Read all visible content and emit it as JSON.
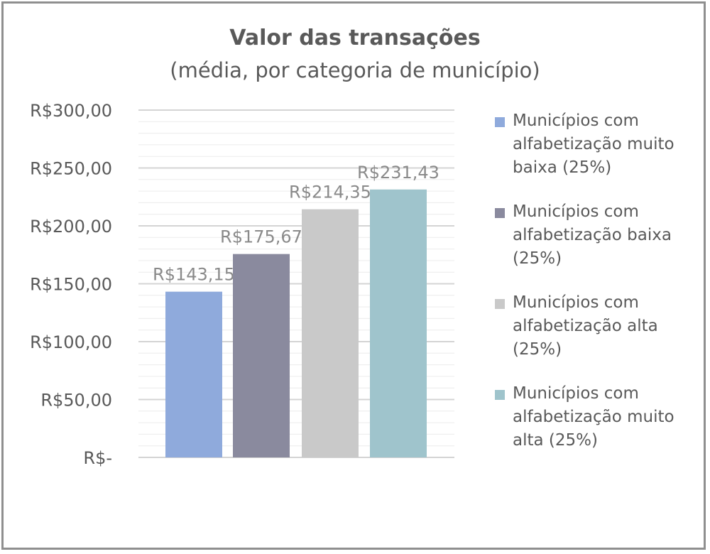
{
  "chart_data": {
    "type": "bar",
    "title": "Valor das transações",
    "subtitle": "(média, por categoria de município)",
    "categories": [
      "Municípios com alfabetização muito baixa (25%)",
      "Municípios com alfabetização baixa (25%)",
      "Municípios com alfabetização alta (25%)",
      "Municípios com alfabetização muito alta (25%)"
    ],
    "values": [
      143.15,
      175.67,
      214.35,
      231.43
    ],
    "data_labels": [
      "R$143,15",
      "R$175,67",
      "R$214,35",
      "R$231,43"
    ],
    "colors": [
      "#8faadc",
      "#8a8a9e",
      "#c9c9c9",
      "#9fc4cc"
    ],
    "ylim": [
      0,
      300
    ],
    "yticks": [
      0,
      50,
      100,
      150,
      200,
      250,
      300
    ],
    "ytick_labels": [
      "R$-",
      "R$50,00",
      "R$100,00",
      "R$150,00",
      "R$200,00",
      "R$250,00",
      "R$300,00"
    ],
    "grid": true,
    "legend_position": "right"
  }
}
